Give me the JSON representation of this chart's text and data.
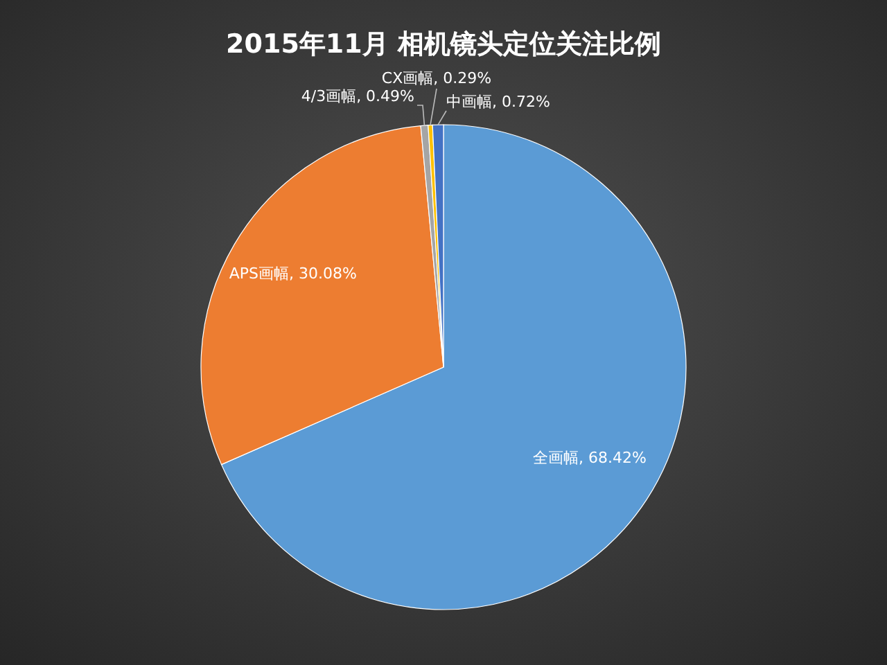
{
  "chart_data": {
    "type": "pie",
    "title": "2015年11月  相机镜头定位关注比例",
    "categories": [
      "全画幅",
      "APS画幅",
      "4/3画幅",
      "CX画幅",
      "中画幅"
    ],
    "values": [
      68.42,
      30.08,
      0.49,
      0.29,
      0.72
    ],
    "colors": [
      "#5b9bd5",
      "#ed7d31",
      "#a5a5a5",
      "#ffc000",
      "#4472c4"
    ],
    "value_labels": [
      ", 68.42%",
      ", 30.08%",
      ", 0.49%",
      ", 0.29%",
      ", 0.72%"
    ],
    "legend": false
  }
}
